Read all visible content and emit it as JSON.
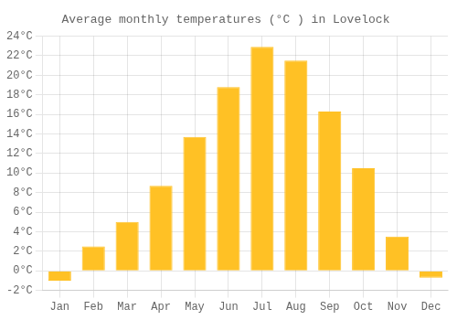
{
  "chart_data": {
    "type": "bar",
    "title": "Average monthly temperatures (°C ) in Lovelock",
    "categories": [
      "Jan",
      "Feb",
      "Mar",
      "Apr",
      "May",
      "Jun",
      "Jul",
      "Aug",
      "Sep",
      "Oct",
      "Nov",
      "Dec"
    ],
    "values": [
      -1.0,
      2.5,
      5.0,
      8.7,
      13.7,
      18.8,
      22.9,
      21.5,
      16.3,
      10.5,
      3.5,
      -0.7
    ],
    "color": "#FFC125",
    "ylim": [
      -2,
      24
    ],
    "yticks": [
      {
        "value": -2,
        "label": "-2°C"
      },
      {
        "value": 0,
        "label": "0°C"
      },
      {
        "value": 2,
        "label": "2°C"
      },
      {
        "value": 4,
        "label": "4°C"
      },
      {
        "value": 6,
        "label": "6°C"
      },
      {
        "value": 8,
        "label": "8°C"
      },
      {
        "value": 10,
        "label": "10°C"
      },
      {
        "value": 12,
        "label": "12°C"
      },
      {
        "value": 14,
        "label": "14°C"
      },
      {
        "value": 16,
        "label": "16°C"
      },
      {
        "value": 18,
        "label": "18°C"
      },
      {
        "value": 20,
        "label": "20°C"
      },
      {
        "value": 22,
        "label": "22°C"
      },
      {
        "value": 24,
        "label": "24°C"
      }
    ],
    "grid": true
  }
}
